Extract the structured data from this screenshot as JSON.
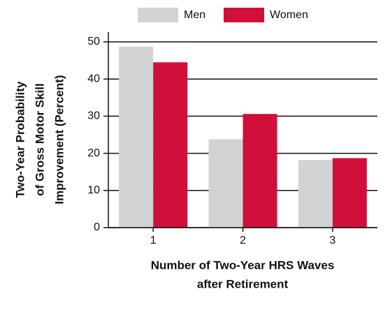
{
  "chart_data": {
    "type": "bar",
    "categories": [
      "1",
      "2",
      "3"
    ],
    "series": [
      {
        "name": "Men",
        "color": "#d1d3d4",
        "values": [
          48.7,
          23.8,
          18.2
        ]
      },
      {
        "name": "Women",
        "color": "#d0103a",
        "values": [
          44.5,
          30.6,
          18.7
        ]
      }
    ],
    "xlabel": [
      "Number of Two-Year HRS Waves",
      "after Retirement"
    ],
    "ylabel": [
      "Two-Year Probability",
      "of Gross Motor Skill",
      "Improvement (Percent)"
    ],
    "ylim": [
      0,
      50
    ],
    "yticks": [
      0,
      10,
      20,
      30,
      40,
      50
    ],
    "grid": true,
    "legend": "top"
  }
}
